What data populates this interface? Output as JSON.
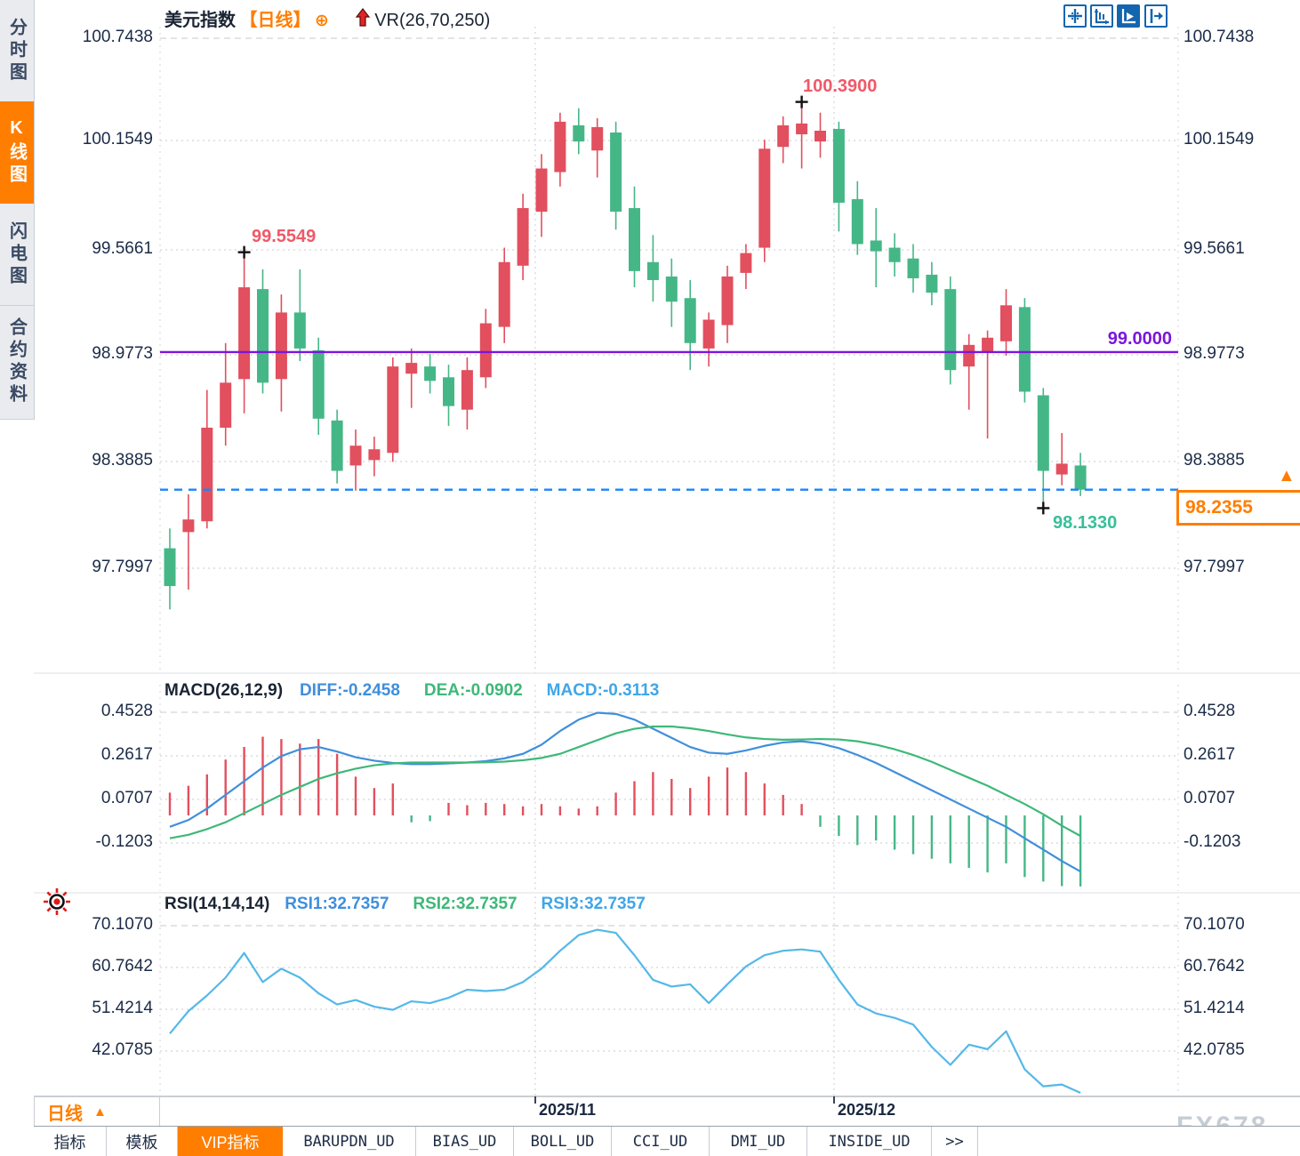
{
  "sidebar": {
    "tabs": [
      {
        "label": "分时图",
        "active": false
      },
      {
        "label": "K线图",
        "active": true
      },
      {
        "label": "闪电图",
        "active": false
      },
      {
        "label": "合约资料",
        "active": false
      }
    ]
  },
  "header": {
    "symbol": "美元指数",
    "period_tag": "【日线】",
    "indicator": "VR(26,70,250)"
  },
  "toolbar": {
    "icons": [
      "crosshair-move-icon",
      "axis-scale-icon",
      "axis-play-icon",
      "exit-right-icon"
    ],
    "active_icon": "axis-play-icon"
  },
  "annotations": {
    "swing_high_1": "99.5549",
    "swing_high_2": "100.3900",
    "swing_low": "98.1330",
    "hline_label": "99.0000",
    "last_price": "98.2355"
  },
  "macd_panel": {
    "title": "MACD(26,12,9)",
    "diff_label": "DIFF:-0.2458",
    "dea_label": "DEA:-0.0902",
    "macd_label": "MACD:-0.3113",
    "axis_labels": [
      "0.4528",
      "0.2617",
      "0.0707",
      "-0.1203"
    ]
  },
  "rsi_panel": {
    "title": "RSI(14,14,14)",
    "rsi1_label": "RSI1:32.7357",
    "rsi2_label": "RSI2:32.7357",
    "rsi3_label": "RSI3:32.7357",
    "axis_labels": [
      "70.1070",
      "60.7642",
      "51.4214",
      "42.0785"
    ]
  },
  "xaxis": {
    "months": [
      "2025/11",
      "2025/12"
    ]
  },
  "period_selector": {
    "label": "日线",
    "arrow": "▲"
  },
  "bottom_tabs": [
    {
      "label": "指标",
      "active": false
    },
    {
      "label": "模板",
      "active": false
    },
    {
      "label": "VIP指标",
      "active": true
    },
    {
      "label": "BARUPDN_UD",
      "active": false
    },
    {
      "label": "BIAS_UD",
      "active": false
    },
    {
      "label": "BOLL_UD",
      "active": false
    },
    {
      "label": "CCI_UD",
      "active": false
    },
    {
      "label": "DMI_UD",
      "active": false
    },
    {
      "label": "INSIDE_UD",
      "active": false
    },
    {
      "label": ">>",
      "active": false
    }
  ],
  "watermark": "FX678",
  "colors": {
    "up": "#e24f5e",
    "down": "#45b787",
    "purple_line": "#7b16db",
    "dashed_line": "#1a86f8",
    "grid": "#d9dce1",
    "diff_line": "#3f8fdc",
    "dea_line": "#3eb878",
    "rsi_line": "#55b8e8",
    "accent_orange": "#ff7e00",
    "icon_blue": "#1465ae",
    "marker": "#111111"
  },
  "chart_data": [
    {
      "type": "candlestick",
      "title": "美元指数 日线",
      "y_tick_labels": [
        "100.7438",
        "100.1549",
        "99.5661",
        "98.9773",
        "98.3885",
        "97.7997"
      ],
      "ylim": [
        97.45,
        100.8
      ],
      "key_levels": {
        "horizontal_line": 99.0,
        "last_price_line": 98.2355
      },
      "markers": [
        {
          "price": 99.5549,
          "index": 4,
          "kind": "high"
        },
        {
          "price": 100.39,
          "index": 34,
          "kind": "high"
        },
        {
          "price": 98.133,
          "index": 47,
          "kind": "low"
        }
      ],
      "candles_ohlc": [
        [
          97.91,
          98.02,
          97.57,
          97.7
        ],
        [
          98.0,
          98.21,
          97.68,
          98.07
        ],
        [
          98.06,
          98.79,
          98.02,
          98.58
        ],
        [
          98.58,
          99.05,
          98.48,
          98.83
        ],
        [
          98.85,
          99.5549,
          98.66,
          99.36
        ],
        [
          99.35,
          99.46,
          98.77,
          98.83
        ],
        [
          98.85,
          99.32,
          98.67,
          99.22
        ],
        [
          99.22,
          99.46,
          98.95,
          99.02
        ],
        [
          99.01,
          99.08,
          98.54,
          98.63
        ],
        [
          98.62,
          98.68,
          98.27,
          98.34
        ],
        [
          98.37,
          98.57,
          98.23,
          98.48
        ],
        [
          98.4,
          98.53,
          98.31,
          98.46
        ],
        [
          98.44,
          98.97,
          98.39,
          98.92
        ],
        [
          98.88,
          99.02,
          98.69,
          98.94
        ],
        [
          98.92,
          98.99,
          98.77,
          98.84
        ],
        [
          98.86,
          98.93,
          98.59,
          98.7
        ],
        [
          98.68,
          98.97,
          98.57,
          98.9
        ],
        [
          98.86,
          99.24,
          98.8,
          99.16
        ],
        [
          99.14,
          99.58,
          99.05,
          99.5
        ],
        [
          99.48,
          99.88,
          99.4,
          99.8
        ],
        [
          99.78,
          100.1,
          99.64,
          100.02
        ],
        [
          100.0,
          100.33,
          99.92,
          100.28
        ],
        [
          100.26,
          100.355,
          100.1,
          100.17
        ],
        [
          100.12,
          100.3,
          99.97,
          100.25
        ],
        [
          100.22,
          100.28,
          99.68,
          99.78
        ],
        [
          99.8,
          99.92,
          99.36,
          99.45
        ],
        [
          99.5,
          99.65,
          99.28,
          99.4
        ],
        [
          99.42,
          99.52,
          99.14,
          99.28
        ],
        [
          99.3,
          99.4,
          98.9,
          99.05
        ],
        [
          99.02,
          99.22,
          98.92,
          99.18
        ],
        [
          99.15,
          99.48,
          99.05,
          99.42
        ],
        [
          99.44,
          99.6,
          99.35,
          99.55
        ],
        [
          99.58,
          100.18,
          99.5,
          100.13
        ],
        [
          100.14,
          100.31,
          100.05,
          100.26
        ],
        [
          100.21,
          100.39,
          100.02,
          100.27
        ],
        [
          100.17,
          100.33,
          100.08,
          100.23
        ],
        [
          100.24,
          100.28,
          99.67,
          99.83
        ],
        [
          99.85,
          99.95,
          99.54,
          99.6
        ],
        [
          99.62,
          99.8,
          99.36,
          99.56
        ],
        [
          99.58,
          99.66,
          99.42,
          99.5
        ],
        [
          99.52,
          99.6,
          99.33,
          99.41
        ],
        [
          99.43,
          99.5,
          99.26,
          99.33
        ],
        [
          99.35,
          99.42,
          98.82,
          98.9
        ],
        [
          98.92,
          99.1,
          98.68,
          99.04
        ],
        [
          99.0,
          99.12,
          98.52,
          99.08
        ],
        [
          99.06,
          99.35,
          98.98,
          99.26
        ],
        [
          99.25,
          99.3,
          98.72,
          98.78
        ],
        [
          98.76,
          98.8,
          98.133,
          98.34
        ],
        [
          98.32,
          98.55,
          98.26,
          98.38
        ],
        [
          98.37,
          98.44,
          98.2,
          98.2355
        ]
      ]
    },
    {
      "type": "bar",
      "name": "MACD",
      "y_tick_labels": [
        "0.4528",
        "0.2617",
        "0.0707",
        "-0.1203"
      ],
      "histogram": [
        0.1,
        0.13,
        0.18,
        0.245,
        0.3,
        0.345,
        0.335,
        0.315,
        0.335,
        0.27,
        0.17,
        0.12,
        0.14,
        -0.03,
        -0.025,
        0.055,
        0.045,
        0.055,
        0.05,
        0.04,
        0.05,
        0.04,
        0.03,
        0.04,
        0.1,
        0.15,
        0.19,
        0.16,
        0.12,
        0.17,
        0.21,
        0.19,
        0.14,
        0.09,
        0.05,
        -0.05,
        -0.09,
        -0.13,
        -0.11,
        -0.15,
        -0.17,
        -0.19,
        -0.21,
        -0.23,
        -0.25,
        -0.21,
        -0.27,
        -0.29,
        -0.31,
        -0.3113
      ],
      "series": [
        {
          "name": "DIFF",
          "values": [
            -0.05,
            -0.02,
            0.03,
            0.09,
            0.15,
            0.21,
            0.26,
            0.29,
            0.3,
            0.28,
            0.255,
            0.24,
            0.23,
            0.225,
            0.225,
            0.228,
            0.232,
            0.238,
            0.25,
            0.27,
            0.31,
            0.37,
            0.42,
            0.45,
            0.445,
            0.42,
            0.38,
            0.34,
            0.3,
            0.275,
            0.27,
            0.285,
            0.305,
            0.32,
            0.325,
            0.315,
            0.295,
            0.265,
            0.23,
            0.19,
            0.15,
            0.11,
            0.07,
            0.03,
            -0.01,
            -0.05,
            -0.1,
            -0.15,
            -0.2,
            -0.2458
          ]
        },
        {
          "name": "DEA",
          "values": [
            -0.1,
            -0.085,
            -0.06,
            -0.03,
            0.01,
            0.05,
            0.09,
            0.125,
            0.16,
            0.185,
            0.205,
            0.22,
            0.228,
            0.232,
            0.232,
            0.232,
            0.232,
            0.233,
            0.236,
            0.242,
            0.252,
            0.27,
            0.3,
            0.33,
            0.36,
            0.38,
            0.39,
            0.39,
            0.382,
            0.37,
            0.355,
            0.342,
            0.335,
            0.332,
            0.333,
            0.335,
            0.333,
            0.325,
            0.31,
            0.29,
            0.265,
            0.235,
            0.2,
            0.165,
            0.13,
            0.09,
            0.05,
            0.005,
            -0.045,
            -0.0902
          ]
        }
      ]
    },
    {
      "type": "line",
      "name": "RSI",
      "y_tick_labels": [
        "70.1070",
        "60.7642",
        "51.4214",
        "42.0785"
      ],
      "values": [
        46,
        51,
        54.5,
        58.5,
        64,
        57.5,
        60.5,
        58.5,
        55,
        52.5,
        53.5,
        52,
        51.3,
        53.2,
        52.8,
        54,
        55.8,
        55.5,
        55.8,
        57.5,
        60.5,
        64.5,
        68,
        69.2,
        68.5,
        63.5,
        58,
        56.5,
        57,
        52.8,
        57,
        61,
        63.5,
        64.5,
        64.8,
        64.3,
        58,
        52.5,
        50.5,
        49.5,
        48,
        43,
        39,
        43.5,
        42.5,
        46.5,
        38,
        34.2,
        34.6,
        32.7357
      ]
    }
  ]
}
